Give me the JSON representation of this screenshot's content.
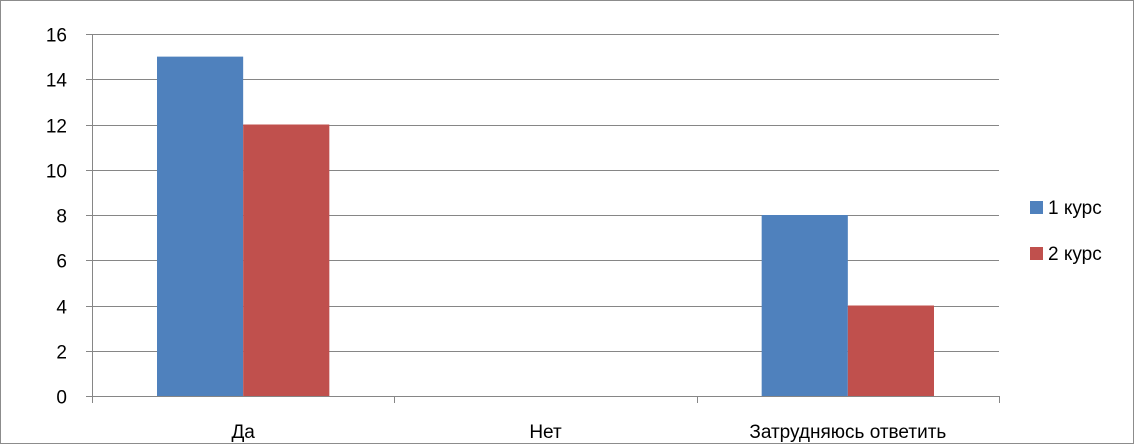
{
  "chart_data": {
    "type": "bar",
    "title": "",
    "xlabel": "",
    "ylabel": "",
    "categories": [
      "Да",
      "Нет",
      "Затрудняюсь ответить"
    ],
    "series": [
      {
        "name": "1 курс",
        "values": [
          15,
          0,
          8
        ],
        "color": "#4F81BD"
      },
      {
        "name": "2 курс",
        "values": [
          12,
          0,
          4
        ],
        "color": "#C0504D"
      }
    ],
    "ylim": [
      0,
      16
    ],
    "yticks": [
      0,
      2,
      4,
      6,
      8,
      10,
      12,
      14,
      16
    ],
    "grid": true,
    "legend_position": "right"
  }
}
